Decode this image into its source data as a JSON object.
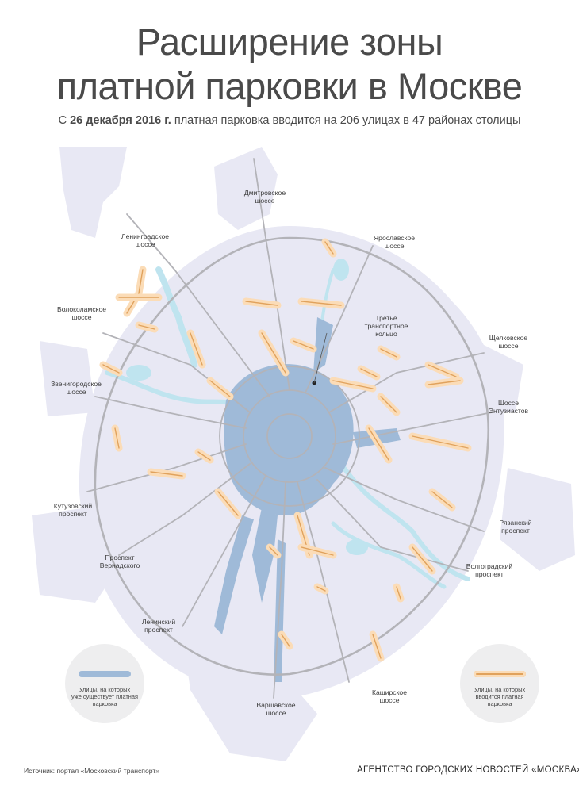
{
  "header": {
    "title_line1": "Расширение зоны",
    "title_line2": "платной парковки в Москве",
    "subtitle_pre": "С ",
    "subtitle_date": "26 декабря 2016 г.",
    "subtitle_post": " платная парковка вводится на 206 улицах в 47 районах столицы"
  },
  "map": {
    "colors": {
      "city_area": "#e8e8f4",
      "roads": "#b3b3b8",
      "water": "#bfe4ef",
      "existing_parking": "#9fbad8",
      "new_parking_glow": "#fbdcb7",
      "new_parking_line": "#e0a25d"
    },
    "labels": {
      "dmitrovskoe": "Дмитровское\nшоссе",
      "yaroslavskoe": "Ярославское\nшоссе",
      "leningradskoe": "Ленинградское\nшоссе",
      "volokolamskoe": "Волоколамское\nшоссе",
      "tretye": "Третье\nтранспортное\nкольцо",
      "shchelkovskoe": "Щелковское\nшоссе",
      "zvenigorodskoe": "Звенигородское\nшоссе",
      "entuziastov": "Шоссе\nЭнтузиастов",
      "kutuzovsky": "Кутузовский\nпроспект",
      "ryazansky": "Рязанский\nпроспект",
      "vernadskogo": "Проспект\nВернадского",
      "volgogradsky": "Волгоградский\nпроспект",
      "leninsky": "Ленинский\nпроспект",
      "kashirskoe": "Каширское\nшоссе",
      "varshavskoe": "Варшавское\nшоссе"
    }
  },
  "legend": {
    "existing": "Улицы, на которых\nуже существует платная\nпарковка",
    "new": "Улицы, на которых\nвводится платная\nпарковка"
  },
  "footer": {
    "source": "Источник: портал «Московский транспорт»",
    "agency": "АГЕНТСТВО ГОРОДСКИХ НОВОСТЕЙ «МОСКВА»"
  }
}
